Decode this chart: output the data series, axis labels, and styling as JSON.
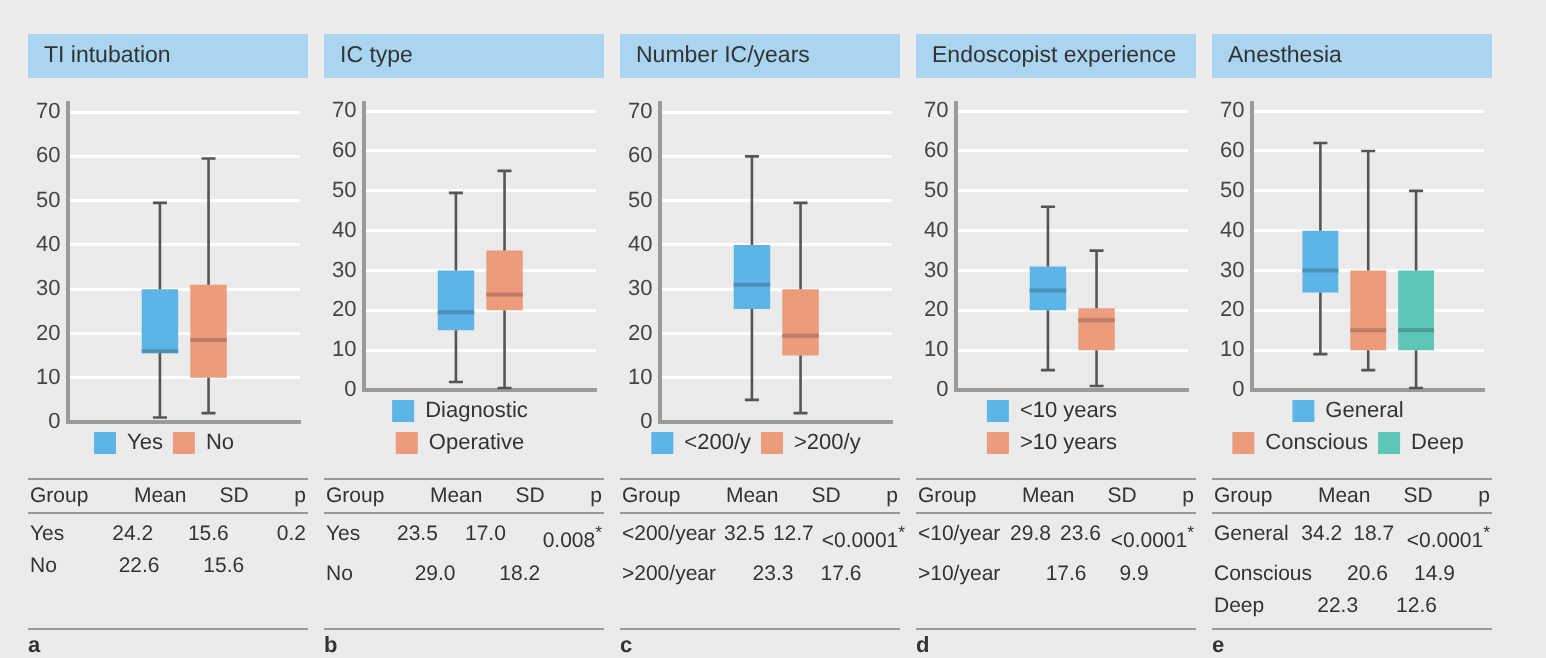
{
  "chart_data": [
    {
      "type": "box",
      "title": "TI intubation",
      "categories": [
        null
      ],
      "ylim": [
        0,
        72
      ],
      "yticks": [
        0,
        10,
        20,
        30,
        40,
        50,
        60,
        70
      ],
      "grid": "y",
      "legend": "bottom",
      "tick_labels": "y",
      "series": [
        {
          "name": "Yes",
          "color": "#5cb5e6",
          "boxes": [
            {
              "low": 1,
              "q1": 16,
              "median": 16,
              "q3": 30,
              "high": 49.5
            }
          ]
        },
        {
          "name": "No",
          "color": "#ec9b7c",
          "boxes": [
            {
              "low": 2,
              "q1": 10,
              "median": 18.5,
              "q3": 31,
              "high": 59.5
            }
          ]
        }
      ],
      "annotations": [
        "Group",
        "Mean",
        "SD",
        "p",
        "Yes",
        "24.2",
        "15.6",
        "0.2",
        "No",
        "22.6",
        "15.6",
        "a"
      ]
    },
    {
      "type": "box",
      "title": "IC type",
      "categories": [
        null
      ],
      "ylim": [
        0,
        72
      ],
      "yticks": [
        0,
        10,
        20,
        30,
        40,
        50,
        60,
        70
      ],
      "grid": "y",
      "legend": "bottom",
      "tick_labels": "y",
      "series": [
        {
          "name": "Diagnostic",
          "color": "#5cb5e6",
          "boxes": [
            {
              "low": 2,
              "q1": 15,
              "median": 19.5,
              "q3": 30,
              "high": 49.5
            }
          ]
        },
        {
          "name": "Operative",
          "color": "#ec9b7c",
          "boxes": [
            {
              "low": 0.5,
              "q1": 20,
              "median": 24,
              "q3": 35,
              "high": 55
            }
          ]
        }
      ],
      "annotations": [
        "Group",
        "Mean",
        "SD",
        "p",
        "Yes",
        "23.5",
        "17.0",
        "0.008$^{*}$",
        "No",
        "29.0",
        "18.2",
        "b"
      ]
    },
    {
      "type": "box",
      "title": "Number IC/years",
      "categories": [
        null
      ],
      "ylim": [
        0,
        72
      ],
      "yticks": [
        0,
        10,
        20,
        30,
        40,
        50,
        60,
        70
      ],
      "grid": "y",
      "legend": "bottom",
      "tick_labels": "y",
      "series": [
        {
          "name": "<200/y",
          "color": "#5cb5e6",
          "boxes": [
            {
              "low": 5,
              "q1": 25.5,
              "median": 31,
              "q3": 40,
              "high": 60
            }
          ]
        },
        {
          "name": ">200/y",
          "color": "#ec9b7c",
          "boxes": [
            {
              "low": 2,
              "q1": 15,
              "median": 19.5,
              "q3": 30,
              "high": 49.5
            }
          ]
        }
      ],
      "annotations": [
        "Group",
        "Mean",
        "SD",
        "p",
        "<200/year",
        "32.5",
        "12.7",
        "<0.0001$^{*}$",
        ">200/year",
        "23.3",
        "17.6",
        "c"
      ]
    },
    {
      "type": "box",
      "title": "Endoscopist experience",
      "categories": [
        null
      ],
      "ylim": [
        0,
        72
      ],
      "yticks": [
        0,
        10,
        20,
        30,
        40,
        50,
        60,
        70
      ],
      "grid": "y",
      "legend": "bottom",
      "tick_labels": "y",
      "series": [
        {
          "name": "<10 years",
          "color": "#5cb5e6",
          "boxes": [
            {
              "low": 5,
              "q1": 20,
              "median": 25,
              "q3": 31,
              "high": 46
            }
          ]
        },
        {
          "name": ">10 years",
          "color": "#ec9b7c",
          "boxes": [
            {
              "low": 1,
              "q1": 10,
              "median": 17.5,
              "q3": 20.5,
              "high": 35
            }
          ]
        }
      ],
      "annotations": [
        "Group",
        "Mean",
        "SD",
        "p",
        "<10/year",
        "29.8",
        "23.6",
        "<0.0001$^{*}$",
        ">10/year",
        "17.6",
        "9.9",
        "d"
      ]
    },
    {
      "type": "box",
      "title": "Anesthesia",
      "categories": [
        null
      ],
      "ylim": [
        0,
        72
      ],
      "yticks": [
        0,
        10,
        20,
        30,
        40,
        50,
        60,
        70
      ],
      "grid": "y",
      "legend": "bottom",
      "tick_labels": "y",
      "series": [
        {
          "name": "General",
          "color": "#5cb5e6",
          "boxes": [
            {
              "low": 9,
              "q1": 24.5,
              "median": 30,
              "q3": 40,
              "high": 62
            }
          ]
        },
        {
          "name": "Conscious",
          "color": "#ec9b7c",
          "boxes": [
            {
              "low": 5,
              "q1": 10,
              "median": 15,
              "q3": 30,
              "high": 60
            }
          ]
        },
        {
          "name": "Deep",
          "color": "#5cc7b9",
          "boxes": [
            {
              "low": 0.5,
              "q1": 10,
              "median": 15,
              "q3": 30,
              "high": 50
            }
          ]
        }
      ],
      "annotations": [
        "Group",
        "Mean",
        "SD",
        "p",
        "General",
        "34.2",
        "18.7",
        "<0.0001$^{*}$",
        "Conscious",
        "20.6",
        "14.9",
        "Deep",
        "22.3",
        "12.6",
        "e"
      ]
    }
  ]
}
